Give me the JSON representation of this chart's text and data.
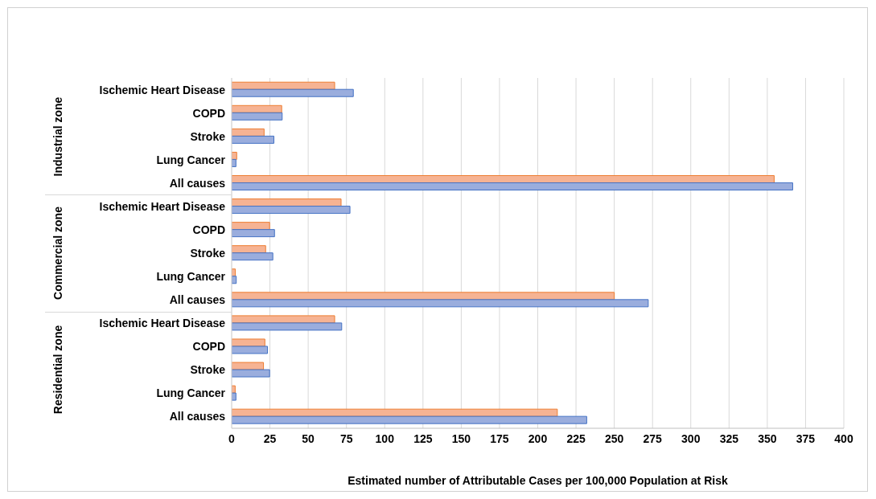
{
  "chart_data": {
    "type": "bar",
    "orientation": "horizontal",
    "xlabel": "Estimated number of Attributable Cases per 100,000 Population at Risk",
    "categories": [
      "Ischemic Heart Disease",
      "COPD",
      "Stroke",
      "Lung Cancer",
      "All causes",
      "Ischemic Heart Disease",
      "COPD",
      "Stroke",
      "Lung Cancer",
      "All causes",
      "Ischemic Heart Disease",
      "COPD",
      "Stroke",
      "Lung Cancer",
      "All causes"
    ],
    "series": [
      {
        "color": "#f6b393",
        "values": [
          67.3,
          32.7,
          21.2,
          3.3,
          354.5,
          71.5,
          24.8,
          22.2,
          2.4,
          250,
          67.3,
          21.7,
          20.8,
          2.3,
          212.8
        ]
      },
      {
        "color": "#9aaddd",
        "values": [
          79.5,
          33,
          27.6,
          2.8,
          366.6,
          77.3,
          28,
          26.9,
          3,
          272.2,
          71.9,
          23.4,
          24.8,
          2.8,
          232
        ]
      }
    ],
    "annotations": [
      "Industrial zone",
      "Commercial zone",
      "Residential zone"
    ],
    "xlim": [
      0,
      400
    ],
    "xticks": [
      0,
      25,
      50,
      75,
      100,
      125,
      150,
      175,
      200,
      225,
      250,
      275,
      300,
      325,
      350,
      375,
      400
    ],
    "grid": "x",
    "legend": false
  }
}
